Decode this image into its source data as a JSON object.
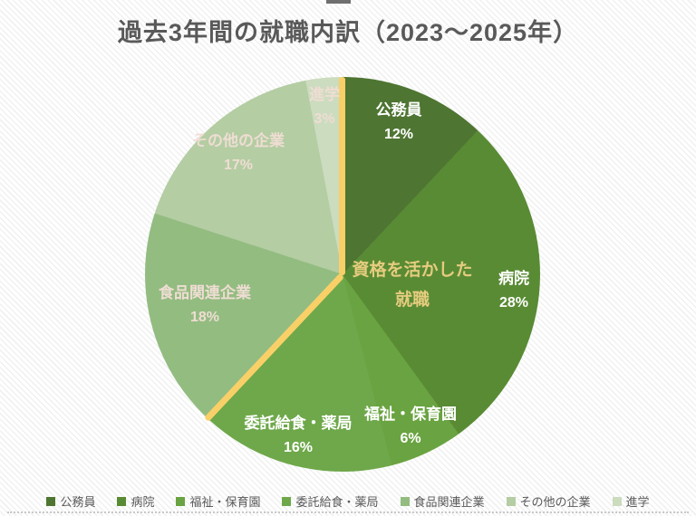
{
  "page": {
    "title": "過去3年間の就職内訳（2023〜2025年）"
  },
  "chart_data": {
    "type": "pie",
    "title": "過去3年間の就職内訳（2023〜2025年）",
    "start_angle_deg": 0,
    "direction": "clockwise",
    "slices": [
      {
        "label": "公務員",
        "value_pct": 12,
        "pct_label": "12%",
        "color": "#4e7532",
        "label_color": "#ffffff"
      },
      {
        "label": "病院",
        "value_pct": 28,
        "pct_label": "28%",
        "color": "#598b34",
        "label_color": "#ffffff"
      },
      {
        "label": "福祉・保育園",
        "value_pct": 6,
        "pct_label": "6%",
        "color": "#6aa341",
        "label_color": "#ffffff"
      },
      {
        "label": "委託給食・薬局",
        "value_pct": 16,
        "pct_label": "16%",
        "color": "#6ea84a",
        "label_color": "#ffffff"
      },
      {
        "label": "食品関連企業",
        "value_pct": 18,
        "pct_label": "18%",
        "color": "#93bc81",
        "label_color": "#efddd3"
      },
      {
        "label": "その他の企業",
        "value_pct": 17,
        "pct_label": "17%",
        "color": "#b4cda3",
        "label_color": "#efddd3"
      },
      {
        "label": "進学",
        "value_pct": 3,
        "pct_label": "3%",
        "color": "#ccdcbf",
        "label_color": "#efddd3"
      }
    ],
    "center_label": {
      "line1": "資格を活かした",
      "line2": "就職"
    },
    "highlight_divider": {
      "color": "#f9d068",
      "angles_deg": [
        0,
        223.2
      ]
    },
    "legend_position": "bottom",
    "legend": [
      "公務員",
      "病院",
      "福祉・保育園",
      "委託給食・薬局",
      "食品関連企業",
      "その他の企業",
      "進学"
    ]
  },
  "colors": {
    "title_text": "#595959",
    "legend_text": "#595959",
    "center_text": "#e6cc7f"
  }
}
